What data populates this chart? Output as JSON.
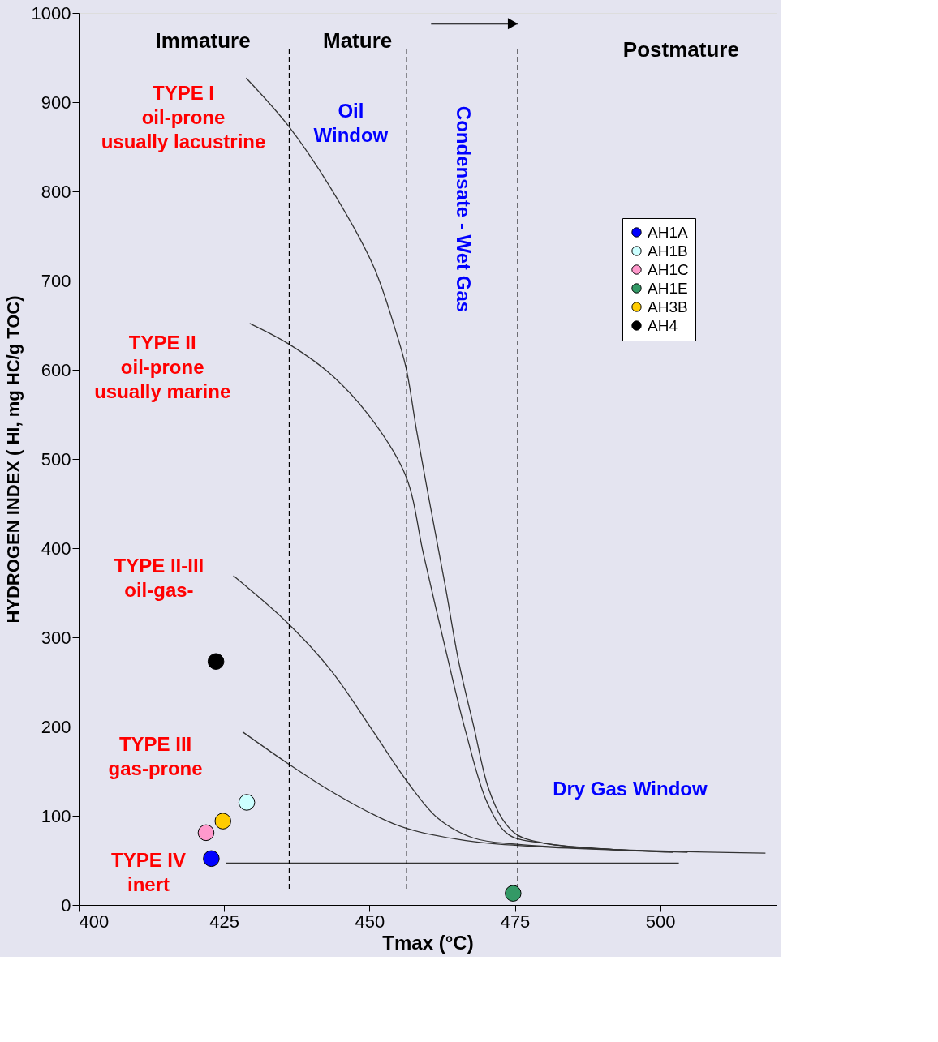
{
  "chart_data": {
    "type": "line",
    "xlabel": "Tmax (°C)",
    "ylabel": "HYDROGEN INDEX ( HI, mg HC/g TOC)",
    "xlim": [
      400,
      520
    ],
    "xticks": [
      400,
      425,
      450,
      475,
      500
    ],
    "ylim": [
      0,
      1000
    ],
    "yticks": [
      0,
      100,
      200,
      300,
      400,
      500,
      600,
      700,
      800,
      900,
      {
        "value": 1000,
        "label": "1000"
      }
    ],
    "grid": false,
    "legend": "right",
    "line_style": "solid",
    "series": [
      {
        "color": "#333333",
        "x": [
          428.8,
          436.1,
          443.4,
          450.7,
          454.4,
          456.3,
          458.1,
          460.5,
          463.0,
          465.4,
          467.9,
          470.4,
          472.8,
          475.3,
          480.2,
          492.4,
          502.2
        ],
        "values": [
          927,
          873,
          803,
          716,
          646,
          602,
          532,
          446,
          359,
          271,
          201,
          132,
          97,
          79,
          69,
          62,
          60
        ]
      },
      {
        "color": "#333333",
        "x": [
          429.4,
          436.1,
          443.5,
          450.8,
          456.3,
          459.3,
          463.0,
          466.6,
          470.3,
          473.9,
          480.2,
          492.4,
          502.2
        ],
        "values": [
          652,
          629,
          594,
          541,
          480,
          393,
          289,
          193,
          114,
          79,
          69,
          62,
          59
        ]
      },
      {
        "color": "#333333",
        "x": [
          426.6,
          436.1,
          443.5,
          450.8,
          456.3,
          461.8,
          467.9,
          475.3,
          492.4,
          518.1
        ],
        "values": [
          369,
          315,
          262,
          193,
          140,
          97,
          75,
          68,
          62,
          58
        ]
      },
      {
        "color": "#333333",
        "x": [
          428.2,
          436.1,
          443.5,
          450.8,
          456.3,
          467.9,
          480.2,
          504.7
        ],
        "values": [
          194,
          158,
          127,
          101,
          86,
          71,
          65,
          59
        ]
      },
      {
        "color": "#333333",
        "x": [
          425.3,
          503.2
        ],
        "values": [
          47,
          47
        ]
      },
      {
        "type": "scatter",
        "name": "AH1A",
        "color": "#0000ff",
        "x": [
          422.8
        ],
        "values": [
          52
        ]
      },
      {
        "type": "scatter",
        "name": "AH1B",
        "color": "#ccffff",
        "x": [
          428.9
        ],
        "values": [
          115
        ]
      },
      {
        "type": "scatter",
        "name": "AH1C",
        "color": "#ff99cc",
        "x": [
          421.9
        ],
        "values": [
          81
        ]
      },
      {
        "type": "scatter",
        "name": "AH1E",
        "color": "#339966",
        "x": [
          474.7
        ],
        "values": [
          13
        ]
      },
      {
        "type": "scatter",
        "name": "AH3B",
        "color": "#ffcc00",
        "x": [
          424.8
        ],
        "values": [
          94
        ]
      },
      {
        "type": "scatter",
        "name": "AH4",
        "color": "#000000",
        "x": [
          423.6
        ],
        "values": [
          273
        ]
      }
    ],
    "ref_lines": [
      {
        "axis": "x",
        "value": 436.2,
        "color": "#000000",
        "line_style": "dashed"
      },
      {
        "axis": "x",
        "value": 456.4,
        "color": "#000000",
        "line_style": "dashed"
      },
      {
        "axis": "x",
        "value": 475.5,
        "color": "#000000",
        "line_style": "dashed"
      }
    ],
    "annotations": [
      "Immature",
      "Mature",
      "Postmature",
      "TYPE I\noil-prone\nusually lacustrine",
      "TYPE II\noil-prone\nusually marine",
      "TYPE II-III\noil-gas-",
      "TYPE III\ngas-prone",
      "TYPE IV\ninert",
      "Oil\nWindow",
      "Condensate - Wet Gas",
      "Dry Gas Window"
    ]
  }
}
